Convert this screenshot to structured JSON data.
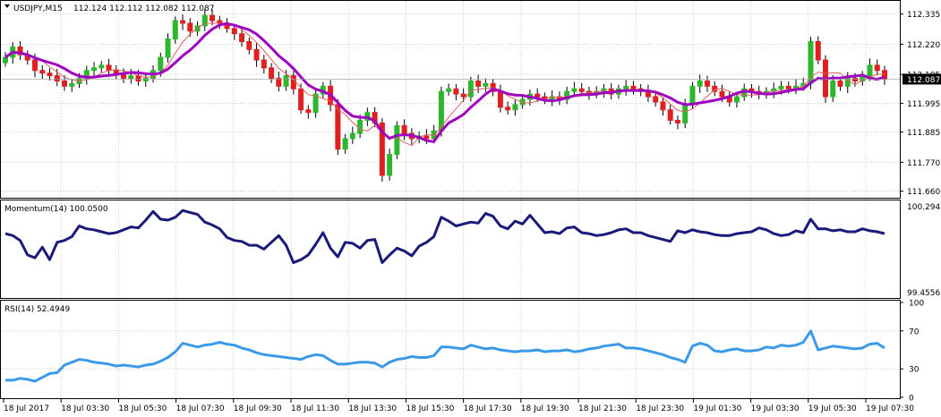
{
  "header": {
    "title": "USDJPY,M15",
    "ohlc": "112.124 112.112 112.082 112.087"
  },
  "colors": {
    "bull": "#2eb72e",
    "bear": "#e02020",
    "wick": "#000000",
    "ma_fast": "#e06060",
    "ma_slow": "#a000c0",
    "momentum": "#1a1a7a",
    "rsi": "#3b9ae8",
    "grid": "#c8ccd2",
    "price_tag_bg": "#000000",
    "price_tag_fg": "#ffffff"
  },
  "price_pane": {
    "ylim": [
      111.645,
      112.375
    ],
    "yticks": [
      "112.335",
      "112.220",
      "112.105",
      "111.995",
      "111.885",
      "111.770",
      "111.660"
    ],
    "current_price": "112.087"
  },
  "momentum_pane": {
    "label": "Momentum(14) 100.0500",
    "ylim": [
      99.43,
      100.32
    ],
    "max_label": "100.2941",
    "min_label": "99.4556"
  },
  "rsi_pane": {
    "label": "RSI(14) 52.4949",
    "ylim": [
      0,
      100
    ],
    "ticks": [
      "100",
      "70",
      "30",
      "0"
    ]
  },
  "time_axis": {
    "labels": [
      "18 Jul 2017",
      "18 Jul 03:30",
      "18 Jul 05:30",
      "18 Jul 07:30",
      "18 Jul 09:30",
      "18 Jul 11:30",
      "18 Jul 13:30",
      "18 Jul 15:30",
      "18 Jul 17:30",
      "18 Jul 19:30",
      "18 Jul 21:30",
      "18 Jul 23:30",
      "19 Jul 01:30",
      "19 Jul 03:30",
      "19 Jul 05:30",
      "19 Jul 07:30"
    ]
  },
  "chart_data": {
    "type": "candlestick",
    "symbol": "USDJPY",
    "timeframe": "M15",
    "closes": [
      112.17,
      112.21,
      112.18,
      112.16,
      112.12,
      112.11,
      112.1,
      112.08,
      112.06,
      112.07,
      112.09,
      112.12,
      112.13,
      112.14,
      112.12,
      112.11,
      112.09,
      112.1,
      112.08,
      112.09,
      112.12,
      112.17,
      112.24,
      112.31,
      112.3,
      112.27,
      112.29,
      112.33,
      112.31,
      112.3,
      112.28,
      112.26,
      112.23,
      112.2,
      112.16,
      112.13,
      112.09,
      112.06,
      112.1,
      112.05,
      111.97,
      111.96,
      112.03,
      112.06,
      111.99,
      111.82,
      111.86,
      111.88,
      111.93,
      111.96,
      111.92,
      111.72,
      111.8,
      111.91,
      111.88,
      111.86,
      111.87,
      111.86,
      111.89,
      112.04,
      112.05,
      112.03,
      112.02,
      112.08,
      112.06,
      112.07,
      112.04,
      111.98,
      111.97,
      111.99,
      112.01,
      112.03,
      112.02,
      112.01,
      112.02,
      112.01,
      112.04,
      112.05,
      112.04,
      112.03,
      112.04,
      112.05,
      112.03,
      112.05,
      112.06,
      112.05,
      112.04,
      112.02,
      112.0,
      111.97,
      111.93,
      111.92,
      111.99,
      112.06,
      112.08,
      112.06,
      112.04,
      112.02,
      112.0,
      112.02,
      112.05,
      112.04,
      112.03,
      112.04,
      112.05,
      112.06,
      112.05,
      112.06,
      112.07,
      112.23,
      112.16,
      112.02,
      112.08,
      112.06,
      112.09,
      112.08,
      112.1,
      112.14,
      112.12,
      112.087
    ],
    "momentum": [
      100.05,
      100.03,
      99.98,
      99.83,
      99.8,
      99.91,
      99.78,
      99.96,
      99.98,
      100.02,
      100.13,
      100.1,
      100.09,
      100.07,
      100.05,
      100.06,
      100.09,
      100.12,
      100.11,
      100.19,
      100.28,
      100.2,
      100.19,
      100.22,
      100.29,
      100.27,
      100.25,
      100.17,
      100.14,
      100.1,
      100.01,
      99.98,
      99.97,
      99.93,
      99.93,
      99.89,
      99.96,
      100.03,
      99.93,
      99.75,
      99.78,
      99.83,
      99.94,
      100.06,
      99.9,
      99.81,
      99.96,
      99.95,
      99.9,
      99.98,
      99.99,
      99.75,
      99.83,
      99.9,
      99.87,
      99.82,
      99.92,
      99.96,
      100.02,
      100.22,
      100.18,
      100.13,
      100.15,
      100.17,
      100.16,
      100.26,
      100.23,
      100.13,
      100.1,
      100.18,
      100.15,
      100.24,
      100.15,
      100.06,
      100.07,
      100.05,
      100.11,
      100.12,
      100.06,
      100.05,
      100.03,
      100.04,
      100.06,
      100.09,
      100.1,
      100.06,
      100.06,
      100.03,
      100.01,
      99.99,
      99.97,
      100.08,
      100.06,
      100.09,
      100.07,
      100.06,
      100.04,
      100.03,
      100.03,
      100.05,
      100.06,
      100.07,
      100.11,
      100.09,
      100.05,
      100.03,
      100.04,
      100.08,
      100.06,
      100.2,
      100.1,
      100.1,
      100.08,
      100.09,
      100.07,
      100.07,
      100.1,
      100.08,
      100.07,
      100.05
    ],
    "rsi": [
      18,
      18,
      20,
      19,
      17,
      21,
      25,
      26,
      34,
      37,
      40,
      39,
      37,
      36,
      35,
      33,
      34,
      33,
      32,
      34,
      35,
      38,
      42,
      48,
      57,
      55,
      53,
      55,
      56,
      58,
      56,
      55,
      52,
      50,
      47,
      45,
      44,
      43,
      42,
      41,
      40,
      43,
      45,
      44,
      39,
      35,
      35,
      36,
      37,
      37,
      36,
      32,
      37,
      40,
      41,
      43,
      42,
      42,
      44,
      53,
      53,
      52,
      51,
      55,
      53,
      51,
      52,
      50,
      49,
      48,
      49,
      49,
      50,
      48,
      49,
      49,
      50,
      48,
      49,
      51,
      52,
      54,
      55,
      56,
      52,
      52,
      51,
      49,
      47,
      45,
      42,
      40,
      37,
      54,
      57,
      55,
      49,
      48,
      50,
      51,
      49,
      49,
      50,
      53,
      52,
      55,
      54,
      55,
      58,
      70,
      50,
      52,
      54,
      53,
      52,
      51,
      52,
      56,
      57,
      52
    ]
  }
}
